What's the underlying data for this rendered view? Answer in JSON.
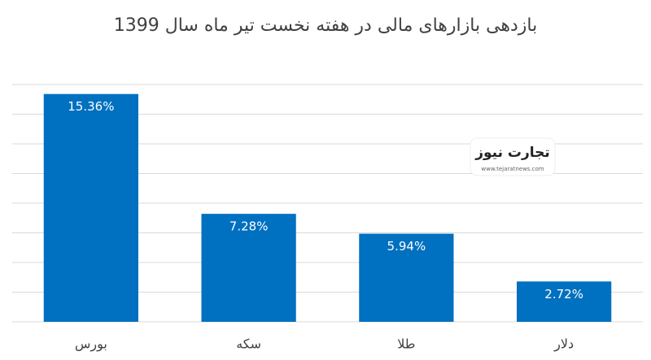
{
  "chart_data": {
    "type": "bar",
    "title": "بازدهی بازارهای مالی در هفته نخست تیر ماه سال 1399",
    "categories": [
      "بورس",
      "سکه",
      "طلا",
      "دلار"
    ],
    "values": [
      15.36,
      7.28,
      5.94,
      2.72
    ],
    "value_labels": [
      "15.36%",
      "7.28%",
      "5.94%",
      "2.72%"
    ],
    "color": "#0070c0",
    "ylim": [
      0,
      16
    ],
    "yticks": [
      0,
      2,
      4,
      6,
      8,
      10,
      12,
      14,
      16
    ],
    "grid": true,
    "watermark": {
      "brand": "تجارت نیوز",
      "url": "www.tejaratnews.com"
    }
  }
}
